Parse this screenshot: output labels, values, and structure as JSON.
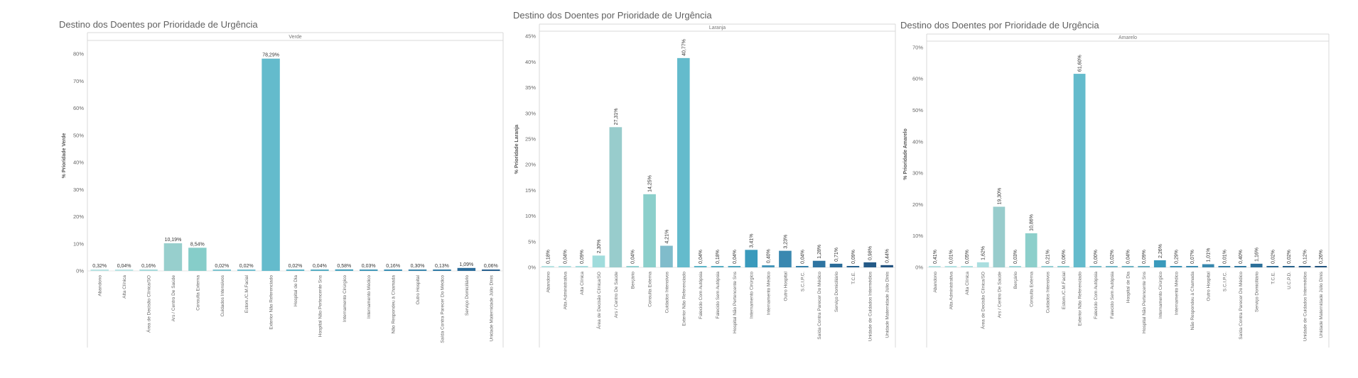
{
  "chart_data": [
    {
      "type": "bar",
      "title": "Destino dos Doentes por Prioridade de Urgência",
      "header": "Verde",
      "ylabel": "% Prioridade Verde",
      "ylim": [
        0,
        85
      ],
      "yticks": [
        0,
        10,
        20,
        30,
        40,
        50,
        60,
        70,
        80
      ],
      "ytick_labels": [
        "0%",
        "10%",
        "20%",
        "30%",
        "40%",
        "50%",
        "60%",
        "70%",
        "80%"
      ],
      "grid": false,
      "categories": [
        "Abandono",
        "Alta Clínica",
        "Área de Decisão Clínica/SO",
        "Ars / Centro De Saúde",
        "Consulta Externa",
        "Cuidados Intensivos",
        "Estom./C.M.Facial",
        "Exterior Não Referenciado",
        "Hospital de Dia",
        "Hospital Não Pertencente Sns",
        "Internamento Cirúrgico",
        "Internamento Médico",
        "Não Respondeu à Chamada",
        "Outro Hospital",
        "Saída Contra Parecer Do Médico",
        "Serviço Domiciliário",
        "Unidade Maternidade Júlio Dinis"
      ],
      "values": [
        0.32,
        0.04,
        0.16,
        10.19,
        8.54,
        0.02,
        0.02,
        78.29,
        0.02,
        0.04,
        0.58,
        0.03,
        0.16,
        0.3,
        0.13,
        1.09,
        0.06
      ],
      "data_labels": [
        "0,32%",
        "0,04%",
        "0,16%",
        "10,19%",
        "8,54%",
        "0,02%",
        "0,02%",
        "78,29%",
        "0,02%",
        "0,04%",
        "0,58%",
        "0,03%",
        "0,16%",
        "0,30%",
        "0,13%",
        "1,09%",
        "0,06%"
      ],
      "colors": [
        "#b7e3e3",
        "#b7e3e3",
        "#a6dadb",
        "#97cfcd",
        "#86cdc9",
        "#7cc3cf",
        "#72bfd0",
        "#64bbcc",
        "#5cb4c8",
        "#56adc3",
        "#4aa4bf",
        "#4399ba",
        "#3b8fb3",
        "#3a86ad",
        "#2f7aa5",
        "#2b6c9a",
        "#275f8d"
      ]
    },
    {
      "type": "bar",
      "title": "Destino dos Doentes por Prioridade de Urgência",
      "header": "Laranja",
      "ylabel": "% Prioridade Laranja",
      "ylim": [
        0,
        46
      ],
      "yticks": [
        0,
        5,
        10,
        15,
        20,
        25,
        30,
        35,
        40,
        45
      ],
      "ytick_labels": [
        "0%",
        "5%",
        "10%",
        "15%",
        "20%",
        "25%",
        "30%",
        "35%",
        "40%",
        "45%"
      ],
      "grid": false,
      "categories": [
        "Abandono",
        "Alta Administrativa",
        "Alta Clínica",
        "Área de Decisão Clínica/SO",
        "Ars / Centro De Saúde",
        "Berçário",
        "Consulta Externa",
        "Cuidados Intensivos",
        "Exterior Não Referenciado",
        "Falecido Com Autópsia",
        "Falecido Sem Autópsia",
        "Hospital Não Pertencente Sns",
        "Internamento Cirúrgico",
        "Internamento Médico",
        "Outro Hospital",
        "S.C.I.P.C.",
        "Saída Contra Parecer Do Médico",
        "Serviço Domiciliário",
        "T.C.E.",
        "Unidade de Cuidados Intermédios",
        "Unidade Maternidade Júlio Dinis"
      ],
      "values": [
        0.18,
        0.04,
        0.09,
        2.3,
        27.31,
        0.04,
        14.25,
        4.21,
        40.77,
        0.04,
        0.18,
        0.04,
        3.41,
        0.4,
        3.23,
        0.04,
        1.28,
        0.71,
        0.09,
        0.98,
        0.44
      ],
      "data_labels": [
        "0,18%",
        "0,04%",
        "0,09%",
        "2,30%",
        "27,31%",
        "0,04%",
        "14,25%",
        "4,21%",
        "40,77%",
        "0,04%",
        "0,18%",
        "0,04%",
        "3,41%",
        "0,40%",
        "3,23%",
        "0,04%",
        "1,28%",
        "0,71%",
        "0,09%",
        "0,98%",
        "0,44%"
      ],
      "colors": [
        "#b7e3e3",
        "#b0e0e1",
        "#a8dcde",
        "#a0dcdc",
        "#98cccc",
        "#93d2d2",
        "#8bcfcb",
        "#80bccb",
        "#64bbcc",
        "#5db5c8",
        "#57aec4",
        "#51a8c0",
        "#3a9abc",
        "#4194b8",
        "#3a88b0",
        "#3480aa",
        "#2e74a1",
        "#2a6b98",
        "#27628f",
        "#245a87",
        "#22527f"
      ]
    },
    {
      "type": "bar",
      "title": "Destino dos Doentes por Prioridade de Urgência",
      "header": "Amarelo",
      "ylabel": "% Prioridade Amarelo",
      "ylim": [
        0,
        72
      ],
      "yticks": [
        0,
        10,
        20,
        30,
        40,
        50,
        60,
        70
      ],
      "ytick_labels": [
        "0%",
        "10%",
        "20%",
        "30%",
        "40%",
        "50%",
        "60%",
        "70%"
      ],
      "grid": false,
      "categories": [
        "Abandono",
        "Alta Administrativa",
        "Alta Clínica",
        "Área de Decisão Clínica/SO",
        "Ars / Centro De Saúde",
        "Berçário",
        "Consulta Externa",
        "Cuidados Intensivos",
        "Estom./C.M.Facial",
        "Exterior Não Referenciado",
        "Falecido Com Autópsia",
        "Falecido Sem Autópsia",
        "Hospital de Dia",
        "Hospital Não Pertencente Sns",
        "Internamento Cirúrgico",
        "Internamento Médico",
        "Não Respondeu à Chamada",
        "Outro Hospital",
        "S.C.I.P.C.",
        "Saída Contra Parecer Do Médico",
        "Serviço Domiciliário",
        "T.C.E.",
        "U.C.P.D.",
        "Unidade de Cuidados Intermédios",
        "Unidade Maternidade Júlio Dinis"
      ],
      "values": [
        0.41,
        0.01,
        0.05,
        1.62,
        19.3,
        0.03,
        10.86,
        0.21,
        0.06,
        61.6,
        0.0,
        0.02,
        0.04,
        0.09,
        2.26,
        0.29,
        0.07,
        1.01,
        0.01,
        0.4,
        1.16,
        0.02,
        0.02,
        0.12,
        0.26
      ],
      "data_labels": [
        "0,41%",
        "0,01%",
        "0,05%",
        "1,62%",
        "19,30%",
        "0,03%",
        "10,86%",
        "0,21%",
        "0,06%",
        "61,60%",
        "0,00%",
        "0,02%",
        "0,04%",
        "0,09%",
        "2,26%",
        "0,29%",
        "0,07%",
        "1,01%",
        "0,01%",
        "0,40%",
        "1,16%",
        "0,02%",
        "0,02%",
        "0,12%",
        "0,26%"
      ],
      "colors": [
        "#b7e3e3",
        "#b3e1e2",
        "#aedfe0",
        "#aadedf",
        "#98cccc",
        "#a0d8da",
        "#8ccfcb",
        "#94cfd4",
        "#8cccd1",
        "#64bbcc",
        "#7cc0cc",
        "#74b9c8",
        "#6db3c4",
        "#66adc0",
        "#3a9abc",
        "#3f96b8",
        "#3b8eb2",
        "#3787ad",
        "#337fa7",
        "#2f77a0",
        "#2c6f99",
        "#296892",
        "#26618b",
        "#245a84",
        "#22537d"
      ]
    }
  ]
}
